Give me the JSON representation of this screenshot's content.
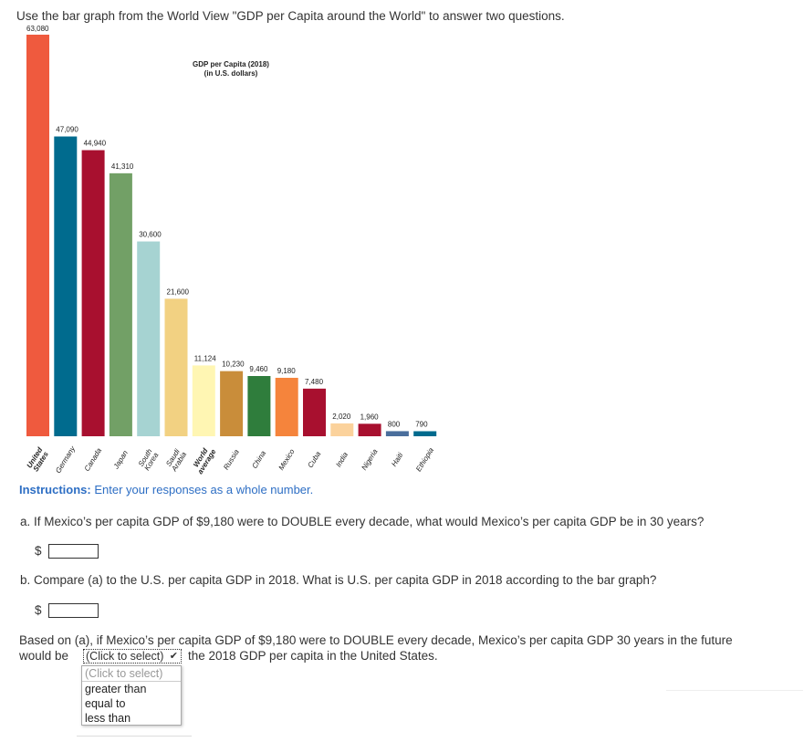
{
  "intro": "Use the bar graph from the World View \"GDP per Capita around the World\" to answer two questions.",
  "instructions_label": "Instructions:",
  "instructions_text": " Enter your responses as a whole number.",
  "question_a": "a. If Mexico’s per capita GDP of $9,180 were to DOUBLE every decade, what would Mexico’s per capita GDP be in 30 years?",
  "question_b": "b. Compare (a) to the U.S. per capita GDP in 2018. What is U.S. per capita GDP in 2018 according to the bar graph?",
  "currency": "$",
  "answer_a": "",
  "answer_b": "",
  "question_c_part1": "Based on (a), if Mexico’s per capita GDP of $9,180 were to DOUBLE every decade, Mexico’s per capita GDP 30 years in the future",
  "question_c_part2": "would be",
  "question_c_part3": "the 2018 GDP per capita in the United States.",
  "select_value": "(Click to select)",
  "dropdown_options": [
    "(Click to select)",
    "greater than",
    "equal to",
    "less than"
  ],
  "chart_data": {
    "type": "bar",
    "title": "GDP per Capita (2018)",
    "subtitle": "(in U.S. dollars)",
    "categories": [
      "United States",
      "Germany",
      "Canada",
      "Japan",
      "South Korea",
      "Saudi Arabia",
      "World average",
      "Russia",
      "China",
      "Mexico",
      "Cuba",
      "India",
      "Nigeria",
      "Haiti",
      "Ethiopia"
    ],
    "values": [
      63080,
      47090,
      44940,
      41310,
      30600,
      21600,
      11124,
      10230,
      9460,
      9180,
      7480,
      2020,
      1960,
      800,
      790
    ],
    "value_labels": [
      "63,080",
      "47,090",
      "44,940",
      "41,310",
      "30,600",
      "21,600",
      "11,124",
      "10,230",
      "9,460",
      "9,180",
      "7,480",
      "2,020",
      "1,960",
      "800",
      "790"
    ],
    "colors": [
      "#ef5a3e",
      "#006b8e",
      "#a8102f",
      "#72a066",
      "#a6d3d2",
      "#f2d182",
      "#fff6b3",
      "#c98d3a",
      "#2f7d3c",
      "#f5843c",
      "#a8102f",
      "#fbd29c",
      "#a8102f",
      "#4a6e9c",
      "#006b8e"
    ],
    "ylim": [
      0,
      63080
    ],
    "grid": false,
    "legend": "none"
  }
}
